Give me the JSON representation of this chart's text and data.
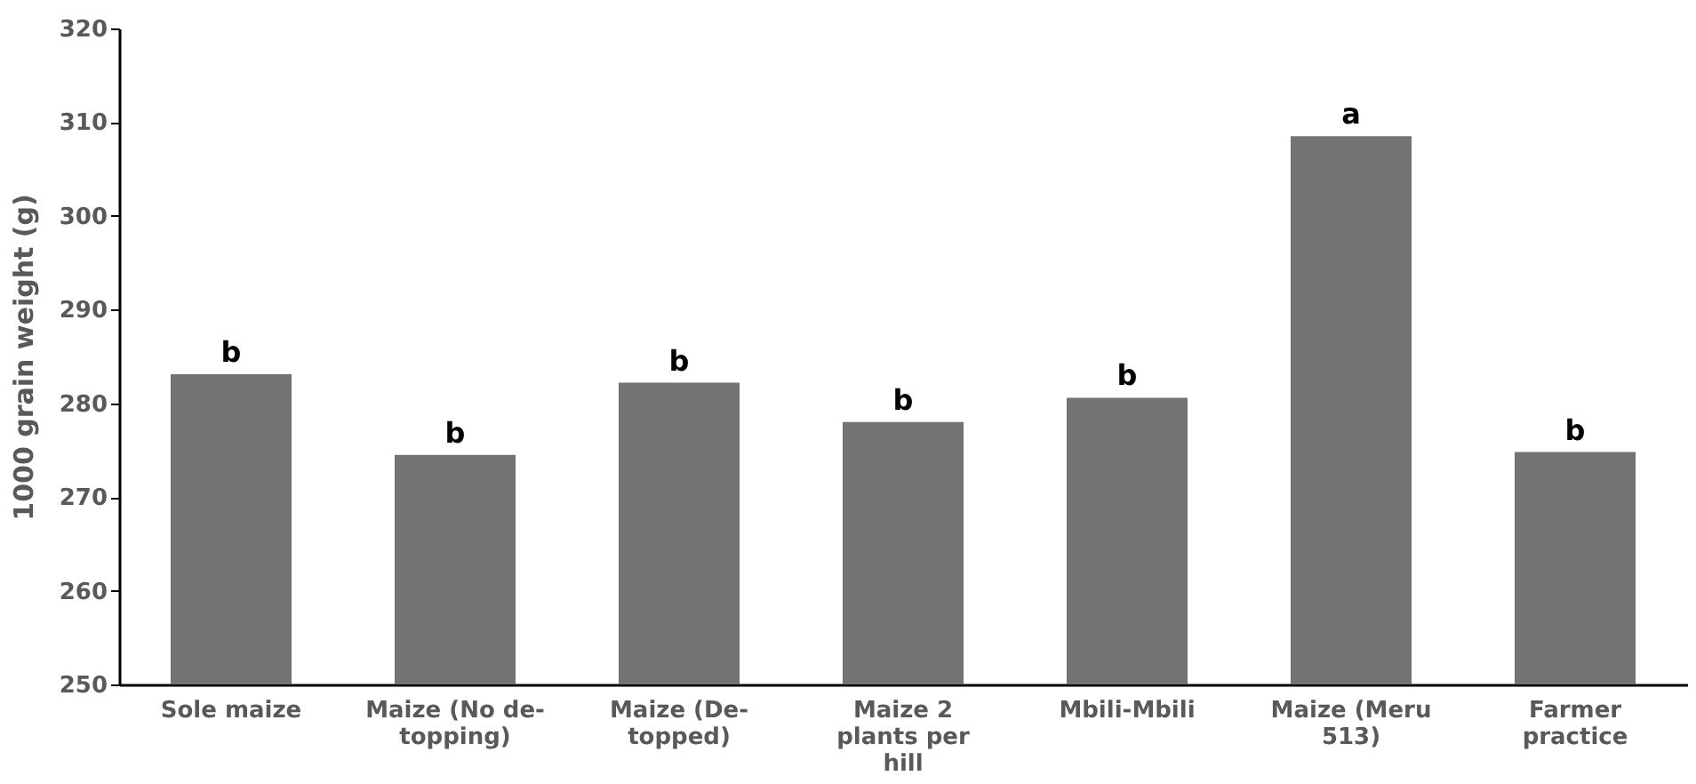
{
  "chart_data": {
    "type": "bar",
    "ylabel": "1000 grain weight (g)",
    "categories": [
      "Sole maize",
      "Maize (No de-topping)",
      "Maize (De-topped)",
      "Maize 2 plants per hill",
      "Mbili-Mbili",
      "Maize (Meru 513)",
      "Farmer practice"
    ],
    "values": [
      283.1,
      274.5,
      282.2,
      278.0,
      280.6,
      308.5,
      274.8
    ],
    "color": "#737373",
    "ylim": [
      250,
      320
    ],
    "yticks": [
      250,
      260,
      270,
      280,
      290,
      300,
      310,
      320
    ],
    "grid": false,
    "annotations": [
      {
        "text": "b",
        "x": "Sole maize",
        "y": 283.1
      },
      {
        "text": "b",
        "x": "Maize (No de-topping)",
        "y": 274.5
      },
      {
        "text": "b",
        "x": "Maize (De-topped)",
        "y": 282.2
      },
      {
        "text": "b",
        "x": "Maize 2 plants per hill",
        "y": 278.0
      },
      {
        "text": "b",
        "x": "Mbili-Mbili",
        "y": 280.6
      },
      {
        "text": "a",
        "x": "Maize (Meru 513)",
        "y": 308.5
      },
      {
        "text": "b",
        "x": "Farmer practice",
        "y": 274.8
      }
    ]
  }
}
